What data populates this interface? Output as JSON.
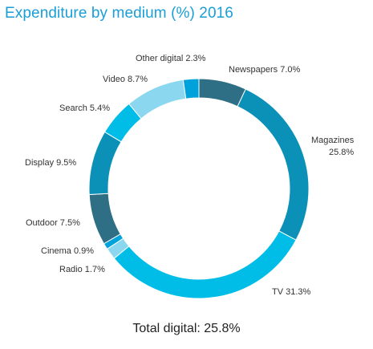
{
  "chart_data": {
    "type": "pie",
    "title": "Expenditure by medium (%) 2016",
    "slices": [
      {
        "label": "Newspapers 7.0%",
        "name": "Newspapers",
        "value": 7.0,
        "color": "#2e6f86"
      },
      {
        "label": "Magazines\n25.8%",
        "name": "Magazines",
        "value": 25.8,
        "color": "#0b90b8"
      },
      {
        "label": "TV 31.3%",
        "name": "TV",
        "value": 31.3,
        "color": "#00bde8"
      },
      {
        "label": "Radio 1.7%",
        "name": "Radio",
        "value": 1.7,
        "color": "#8cd7f0"
      },
      {
        "label": "Cinema 0.9%",
        "name": "Cinema",
        "value": 0.9,
        "color": "#00a2dc"
      },
      {
        "label": "Outdoor 7.5%",
        "name": "Outdoor",
        "value": 7.5,
        "color": "#2e6f86"
      },
      {
        "label": "Display 9.5%",
        "name": "Display",
        "value": 9.5,
        "color": "#0b90b8"
      },
      {
        "label": "Search 5.4%",
        "name": "Search",
        "value": 5.4,
        "color": "#00bde8"
      },
      {
        "label": "Video 8.7%",
        "name": "Video",
        "value": 8.7,
        "color": "#8cd7f0"
      },
      {
        "label": "Other digital 2.3%",
        "name": "Other digital",
        "value": 2.3,
        "color": "#00a2dc"
      }
    ],
    "total_label": "Total digital: 25.8%"
  }
}
